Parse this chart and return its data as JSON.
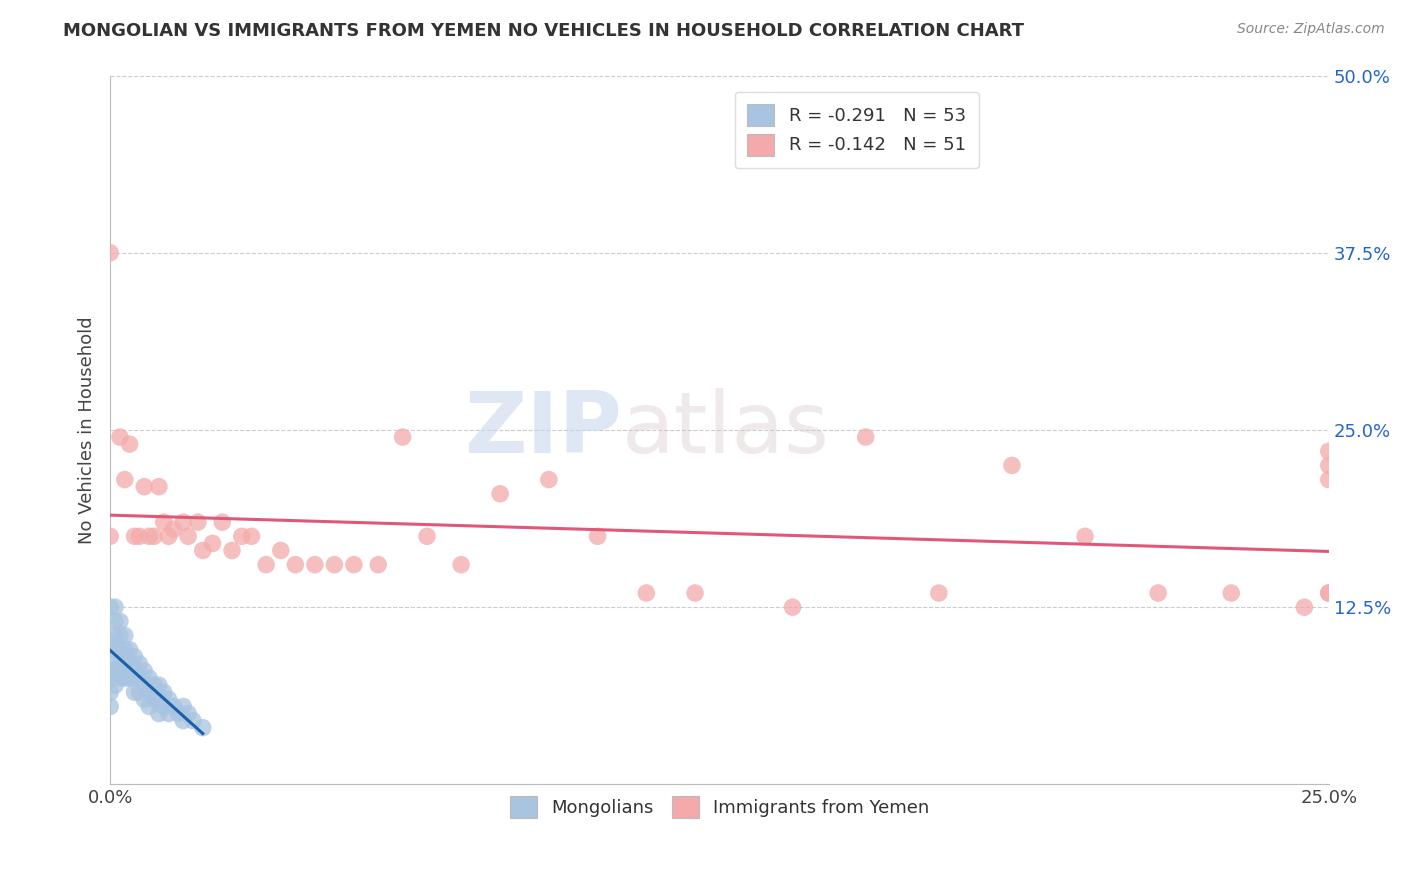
{
  "title": "MONGOLIAN VS IMMIGRANTS FROM YEMEN NO VEHICLES IN HOUSEHOLD CORRELATION CHART",
  "source": "Source: ZipAtlas.com",
  "ylabel": "No Vehicles in Household",
  "x_min": 0.0,
  "x_max": 0.25,
  "y_min": 0.0,
  "y_max": 0.5,
  "y_ticks": [
    0.0,
    0.125,
    0.25,
    0.375,
    0.5
  ],
  "y_tick_labels": [
    "",
    "12.5%",
    "25.0%",
    "37.5%",
    "50.0%"
  ],
  "x_tick_labels_show": [
    "0.0%",
    "25.0%"
  ],
  "mongolian_color": "#a8c4e0",
  "yemen_color": "#f4aaaa",
  "mongolian_line_color": "#1a5fa8",
  "yemen_line_color": "#e05878",
  "legend_label1": "R = -0.291   N = 53",
  "legend_label2": "R = -0.142   N = 51",
  "legend_bottom_label1": "Mongolians",
  "legend_bottom_label2": "Immigrants from Yemen",
  "watermark_zip": "ZIP",
  "watermark_atlas": "atlas",
  "mongolian_x": [
    0.0,
    0.0,
    0.0,
    0.0,
    0.0,
    0.0,
    0.001,
    0.001,
    0.001,
    0.001,
    0.001,
    0.001,
    0.002,
    0.002,
    0.002,
    0.002,
    0.002,
    0.003,
    0.003,
    0.003,
    0.003,
    0.004,
    0.004,
    0.004,
    0.005,
    0.005,
    0.005,
    0.005,
    0.006,
    0.006,
    0.006,
    0.007,
    0.007,
    0.007,
    0.008,
    0.008,
    0.008,
    0.009,
    0.009,
    0.01,
    0.01,
    0.01,
    0.011,
    0.011,
    0.012,
    0.012,
    0.013,
    0.014,
    0.015,
    0.015,
    0.016,
    0.017,
    0.019
  ],
  "mongolian_y": [
    0.125,
    0.1,
    0.085,
    0.075,
    0.065,
    0.055,
    0.125,
    0.115,
    0.105,
    0.095,
    0.08,
    0.07,
    0.115,
    0.105,
    0.095,
    0.085,
    0.075,
    0.105,
    0.095,
    0.085,
    0.075,
    0.095,
    0.085,
    0.075,
    0.09,
    0.08,
    0.075,
    0.065,
    0.085,
    0.075,
    0.065,
    0.08,
    0.07,
    0.06,
    0.075,
    0.065,
    0.055,
    0.07,
    0.06,
    0.07,
    0.06,
    0.05,
    0.065,
    0.055,
    0.06,
    0.05,
    0.055,
    0.05,
    0.055,
    0.045,
    0.05,
    0.045,
    0.04
  ],
  "yemen_x": [
    0.0,
    0.0,
    0.002,
    0.003,
    0.004,
    0.005,
    0.006,
    0.007,
    0.008,
    0.009,
    0.01,
    0.011,
    0.012,
    0.013,
    0.015,
    0.016,
    0.018,
    0.019,
    0.021,
    0.023,
    0.025,
    0.027,
    0.029,
    0.032,
    0.035,
    0.038,
    0.042,
    0.046,
    0.05,
    0.055,
    0.06,
    0.065,
    0.072,
    0.08,
    0.09,
    0.1,
    0.11,
    0.12,
    0.14,
    0.155,
    0.17,
    0.185,
    0.2,
    0.215,
    0.23,
    0.245,
    0.25,
    0.25,
    0.25,
    0.25,
    0.25
  ],
  "yemen_y": [
    0.375,
    0.175,
    0.245,
    0.215,
    0.24,
    0.175,
    0.175,
    0.21,
    0.175,
    0.175,
    0.21,
    0.185,
    0.175,
    0.18,
    0.185,
    0.175,
    0.185,
    0.165,
    0.17,
    0.185,
    0.165,
    0.175,
    0.175,
    0.155,
    0.165,
    0.155,
    0.155,
    0.155,
    0.155,
    0.155,
    0.245,
    0.175,
    0.155,
    0.205,
    0.215,
    0.175,
    0.135,
    0.135,
    0.125,
    0.245,
    0.135,
    0.225,
    0.175,
    0.135,
    0.135,
    0.125,
    0.215,
    0.135,
    0.225,
    0.135,
    0.235
  ]
}
